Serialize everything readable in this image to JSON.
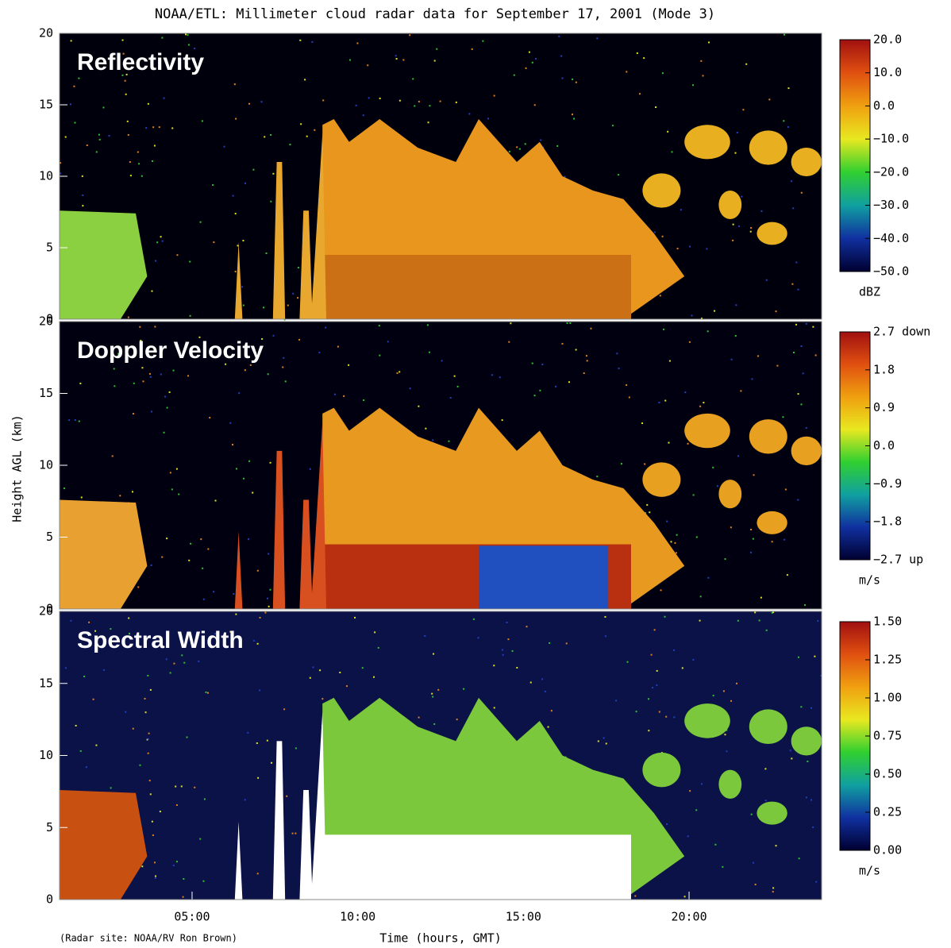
{
  "title": "NOAA/ETL: Millimeter cloud radar data for September 17, 2001 (Mode 3)",
  "y_label": "Height AGL (km)",
  "x_label": "Time (hours, GMT)",
  "footnote": "(Radar site: NOAA/RV Ron Brown)",
  "chart_data": [
    {
      "type": "heatmap",
      "title": "Reflectivity",
      "xlim": [
        1,
        24
      ],
      "ylim": [
        0,
        20
      ],
      "yticks": [
        0,
        5,
        10,
        15,
        20
      ],
      "colorbar": {
        "unit": "dBZ",
        "lim": [
          -50,
          20
        ],
        "colors": [
          "#000030",
          "#1030a0",
          "#10a0a0",
          "#30d030",
          "#e8e820",
          "#f0a010",
          "#e05010",
          "#a01010"
        ],
        "ticks": [
          {
            "value": 20,
            "label": "20.0"
          },
          {
            "value": 10,
            "label": "10.0"
          },
          {
            "value": 0,
            "label": "0.0"
          },
          {
            "value": -10,
            "label": "−10.0"
          },
          {
            "value": -20,
            "label": "−20.0"
          },
          {
            "value": -30,
            "label": "−30.0"
          },
          {
            "value": -40,
            "label": "−40.0"
          },
          {
            "value": -50,
            "label": "−50.0"
          }
        ]
      }
    },
    {
      "type": "heatmap",
      "title": "Doppler Velocity",
      "xlim": [
        1,
        24
      ],
      "ylim": [
        0,
        20
      ],
      "yticks": [
        0,
        5,
        10,
        15,
        20
      ],
      "colorbar": {
        "unit": "m/s",
        "lim": [
          -2.7,
          2.7
        ],
        "colors": [
          "#000030",
          "#1030a0",
          "#10a0a0",
          "#30d030",
          "#e8e820",
          "#f0a010",
          "#e05010",
          "#a01010"
        ],
        "ticks": [
          {
            "value": 2.7,
            "label": "2.7 down"
          },
          {
            "value": 1.8,
            "label": "1.8"
          },
          {
            "value": 0.9,
            "label": "0.9"
          },
          {
            "value": 0,
            "label": "0.0"
          },
          {
            "value": -0.9,
            "label": "−0.9"
          },
          {
            "value": -1.8,
            "label": "−1.8"
          },
          {
            "value": -2.7,
            "label": "−2.7 up"
          }
        ]
      }
    },
    {
      "type": "heatmap",
      "title": "Spectral Width",
      "xlim": [
        1,
        24
      ],
      "ylim": [
        0,
        20
      ],
      "yticks": [
        0,
        5,
        10,
        15,
        20
      ],
      "xticks": [
        {
          "value": 5,
          "label": "05:00"
        },
        {
          "value": 10,
          "label": "10:00"
        },
        {
          "value": 15,
          "label": "15:00"
        },
        {
          "value": 20,
          "label": "20:00"
        }
      ],
      "colorbar": {
        "unit": "m/s",
        "lim": [
          0,
          1.5
        ],
        "colors": [
          "#000030",
          "#1030a0",
          "#10a0a0",
          "#30d030",
          "#e8e820",
          "#f0a010",
          "#e05010",
          "#a01010"
        ],
        "ticks": [
          {
            "value": 1.5,
            "label": "1.50"
          },
          {
            "value": 1.25,
            "label": "1.25"
          },
          {
            "value": 1,
            "label": "1.00"
          },
          {
            "value": 0.75,
            "label": "0.75"
          },
          {
            "value": 0.5,
            "label": "0.50"
          },
          {
            "value": 0.25,
            "label": "0.25"
          },
          {
            "value": 0,
            "label": "0.00"
          }
        ]
      }
    }
  ]
}
